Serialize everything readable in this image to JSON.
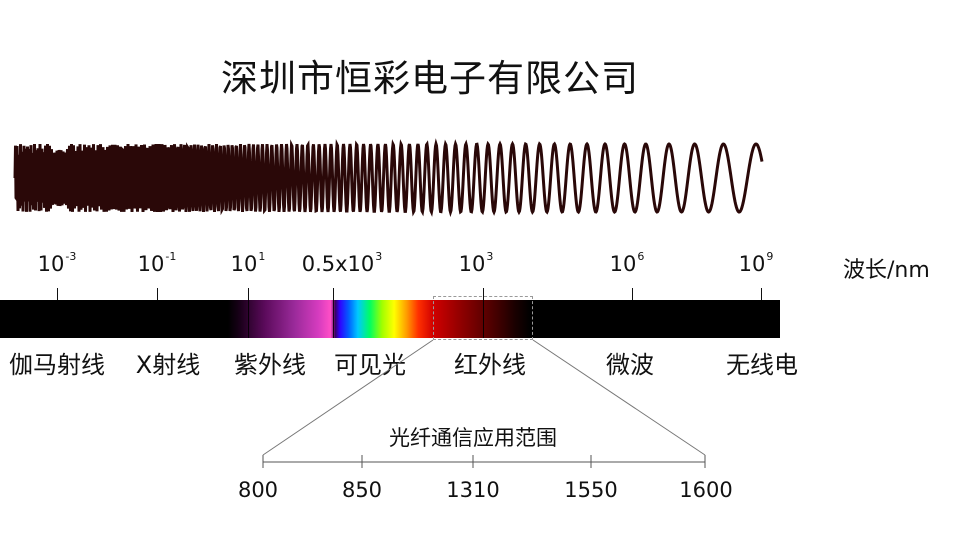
{
  "title": "深圳市恒彩电子有限公司",
  "scale": {
    "unit": "波长/nm",
    "ticks": [
      {
        "base": "10",
        "exp": "-3"
      },
      {
        "base": "10",
        "exp": "-1"
      },
      {
        "base": "10",
        "exp": "1"
      },
      {
        "base": "0.5x10",
        "exp": "3"
      },
      {
        "base": "10",
        "exp": "3"
      },
      {
        "base": "10",
        "exp": "6"
      },
      {
        "base": "10",
        "exp": "9"
      }
    ]
  },
  "regions": [
    "伽马射线",
    "X射线",
    "紫外线",
    "可见光",
    "红外线",
    "微波",
    "无线电"
  ],
  "fiber": {
    "title": "光纤通信应用范围",
    "ticks": [
      "800",
      "850",
      "1310",
      "1550",
      "1600"
    ]
  }
}
